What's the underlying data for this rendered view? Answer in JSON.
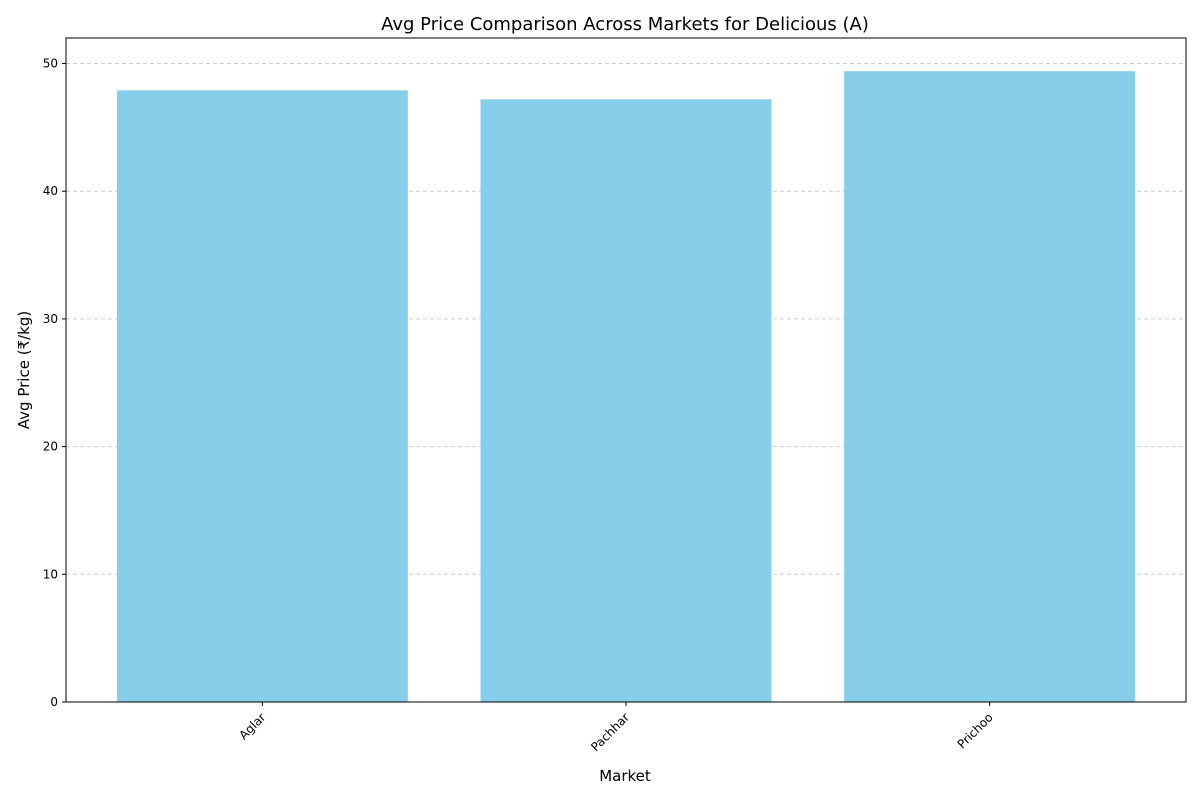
{
  "chart_data": {
    "type": "bar",
    "title": "Avg Price Comparison Across Markets for Delicious (A)",
    "xlabel": "Market",
    "ylabel": "Avg Price (₹/kg)",
    "categories": [
      "Aglar",
      "Pachhar",
      "Prichoo"
    ],
    "values": [
      47.9,
      47.2,
      49.4
    ],
    "ylim": [
      0,
      52
    ],
    "yticks": [
      0,
      10,
      20,
      30,
      40,
      50
    ],
    "grid": "y-dashed",
    "bar_color": "#87CEEB",
    "tick_label_rotation": 45
  }
}
